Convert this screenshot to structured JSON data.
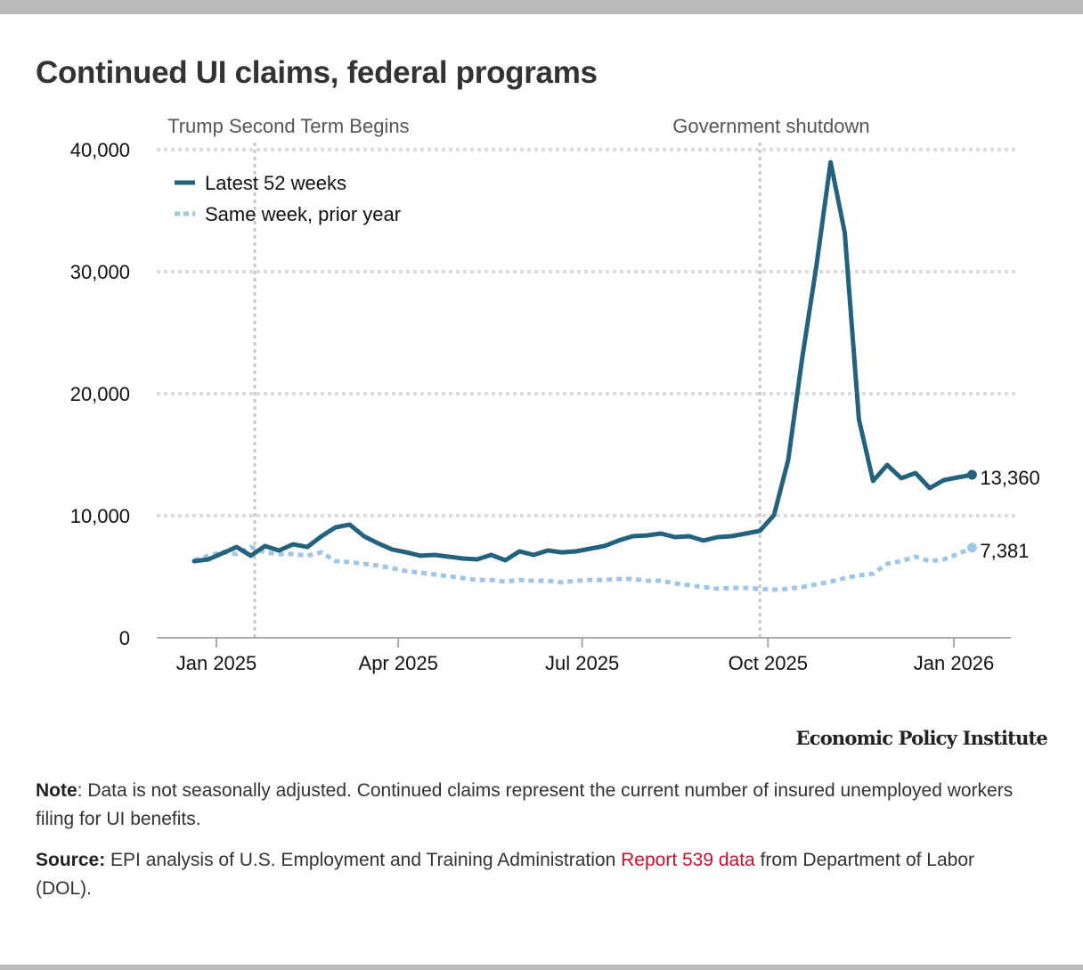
{
  "header": {
    "title": "Continued UI claims, federal programs"
  },
  "chart_data": {
    "type": "line",
    "title": "Continued UI claims, federal programs",
    "xlabel": "",
    "ylabel": "",
    "ylim": [
      0,
      40000
    ],
    "yticks": [
      0,
      10000,
      20000,
      30000,
      40000
    ],
    "ytick_labels": [
      "0",
      "10,000",
      "20,000",
      "30,000",
      "40,000"
    ],
    "xlim": [
      "2024-12-08",
      "2026-01-30"
    ],
    "xticks": [
      "2025-01-01",
      "2025-04-01",
      "2025-07-01",
      "2025-10-01",
      "2026-01-01"
    ],
    "xtick_labels": [
      "Jan 2025",
      "Apr 2025",
      "Jul 2025",
      "Oct 2025",
      "Jan 2026"
    ],
    "grid": true,
    "legend_position": "top-left",
    "x_start": "2024-12-21",
    "x_step_days": 7,
    "series": [
      {
        "name": "Latest 52 weeks",
        "style": "solid",
        "color": "#23627f",
        "end_label": "13,360",
        "values": [
          6280,
          6420,
          6930,
          7440,
          6720,
          7520,
          7150,
          7660,
          7440,
          8320,
          9050,
          9270,
          8320,
          7740,
          7230,
          7000,
          6720,
          6790,
          6640,
          6500,
          6420,
          6790,
          6350,
          7080,
          6790,
          7150,
          7000,
          7080,
          7300,
          7520,
          7960,
          8320,
          8390,
          8540,
          8250,
          8320,
          7960,
          8250,
          8320,
          8540,
          8760,
          10050,
          14570,
          23000,
          30500,
          38970,
          33200,
          17900,
          12850,
          14160,
          13070,
          13500,
          12260,
          12920,
          13140,
          13360
        ]
      },
      {
        "name": "Same week, prior year",
        "style": "dotted",
        "color": "#9fc6e8",
        "end_label": "7,381",
        "values": [
          6350,
          6720,
          7000,
          6860,
          7440,
          7000,
          6860,
          6860,
          6720,
          7000,
          6280,
          6200,
          6060,
          5910,
          5690,
          5470,
          5330,
          5180,
          5040,
          4890,
          4740,
          4740,
          4600,
          4740,
          4670,
          4670,
          4530,
          4670,
          4740,
          4740,
          4820,
          4820,
          4670,
          4670,
          4450,
          4310,
          4160,
          4010,
          4090,
          4090,
          4010,
          3940,
          4010,
          4160,
          4380,
          4600,
          4890,
          5110,
          5250,
          6060,
          6280,
          6640,
          6280,
          6420,
          6860,
          7381
        ]
      }
    ],
    "annotations": [
      {
        "label": "Trump Second Term Begins",
        "date": "2025-01-20"
      },
      {
        "label": "Government shutdown",
        "date": "2025-09-27"
      }
    ]
  },
  "footer": {
    "brand": "Economic Policy Institute",
    "note_label": "Note",
    "note_text": ": Data is not seasonally adjusted. Continued claims represent the current number of insured unemployed workers filing for UI benefits.",
    "source_label": "Source:",
    "source_text_before": " EPI analysis of U.S. Employment and Training Administration ",
    "source_link": "Report 539 data",
    "source_text_after": " from Department of Labor (DOL)."
  }
}
